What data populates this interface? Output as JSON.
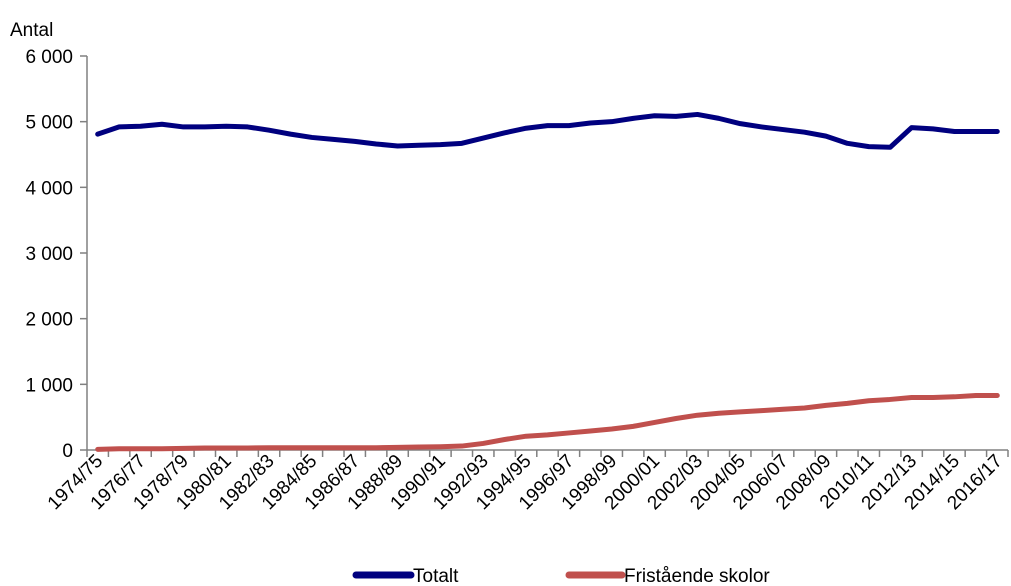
{
  "chart_data": {
    "type": "line",
    "title": "",
    "ylabel": "Antal",
    "xlabel": "",
    "ylim": [
      0,
      6000
    ],
    "yticks": [
      0,
      1000,
      2000,
      3000,
      4000,
      5000,
      6000
    ],
    "ytick_labels": [
      "0",
      "1 000",
      "2 000",
      "3 000",
      "4 000",
      "5 000",
      "6 000"
    ],
    "grid": false,
    "legend_position": "bottom",
    "categories": [
      "1974/75",
      "1975/76",
      "1976/77",
      "1977/78",
      "1978/79",
      "1979/80",
      "1980/81",
      "1981/82",
      "1982/83",
      "1983/84",
      "1984/85",
      "1985/86",
      "1986/87",
      "1987/88",
      "1988/89",
      "1989/90",
      "1990/91",
      "1991/92",
      "1992/93",
      "1993/94",
      "1994/95",
      "1995/96",
      "1996/97",
      "1997/98",
      "1998/99",
      "1999/00",
      "2000/01",
      "2001/02",
      "2002/03",
      "2003/04",
      "2004/05",
      "2005/06",
      "2006/07",
      "2007/08",
      "2008/09",
      "2009/10",
      "2010/11",
      "2011/12",
      "2012/13",
      "2013/14",
      "2014/15",
      "2015/16",
      "2016/17"
    ],
    "xtick_labels": [
      "1974/75",
      "1976/77",
      "1978/79",
      "1980/81",
      "1982/83",
      "1984/85",
      "1986/87",
      "1988/89",
      "1990/91",
      "1992/93",
      "1994/95",
      "1996/97",
      "1998/99",
      "2000/01",
      "2002/03",
      "2004/05",
      "2006/07",
      "2008/09",
      "2010/11",
      "2012/13",
      "2014/15",
      "2016/17"
    ],
    "series": [
      {
        "name": "Totalt",
        "color": "#00007f",
        "values": [
          4810,
          4920,
          4930,
          4960,
          4920,
          4920,
          4930,
          4920,
          4870,
          4810,
          4760,
          4730,
          4700,
          4660,
          4630,
          4640,
          4650,
          4670,
          4750,
          4830,
          4900,
          4940,
          4940,
          4980,
          5000,
          5050,
          5090,
          5080,
          5110,
          5050,
          4970,
          4920,
          4880,
          4840,
          4780,
          4670,
          4620,
          4610,
          4910,
          4890,
          4850,
          4850,
          4850
        ]
      },
      {
        "name": "Fristående skolor",
        "color": "#c0504d",
        "values": [
          10,
          20,
          20,
          20,
          25,
          30,
          30,
          30,
          35,
          35,
          35,
          35,
          35,
          35,
          40,
          45,
          50,
          60,
          100,
          160,
          210,
          230,
          260,
          290,
          320,
          360,
          420,
          480,
          530,
          560,
          580,
          600,
          620,
          640,
          680,
          710,
          750,
          770,
          800,
          800,
          810,
          830,
          830
        ]
      }
    ]
  }
}
